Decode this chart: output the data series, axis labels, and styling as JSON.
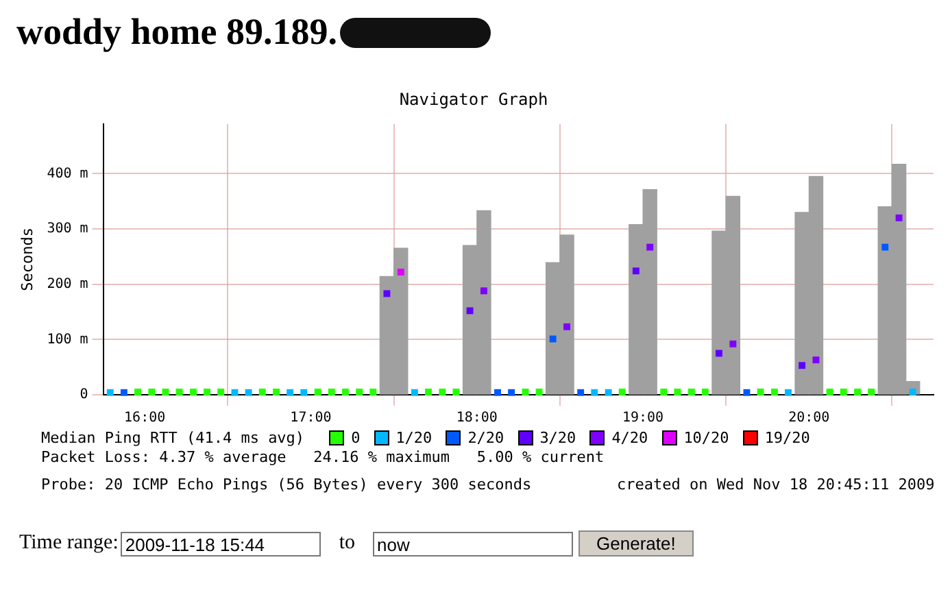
{
  "chart_data": {
    "type": "bar",
    "title": "woddy home 89.189.",
    "subtitle": "Navigator Graph",
    "ylabel": "Seconds",
    "legend_title": "Median Ping RTT (41.4 ms avg)",
    "legend": "bottom",
    "grid": true,
    "marker": "square",
    "xlim": [
      15.75,
      20.75
    ],
    "xticks": [
      {
        "value": 16,
        "label": "16:00"
      },
      {
        "value": 17,
        "label": "17:00"
      },
      {
        "value": 18,
        "label": "18:00"
      },
      {
        "value": 19,
        "label": "19:00"
      },
      {
        "value": 20,
        "label": "20:00"
      }
    ],
    "ylim": [
      0,
      490
    ],
    "yticks": [
      0,
      {
        "value": 100,
        "label": "100 m"
      },
      {
        "value": 200,
        "label": "200 m"
      },
      {
        "value": 300,
        "label": "300 m"
      },
      {
        "value": 400,
        "label": "400 m"
      }
    ],
    "series": [
      {
        "color": "#a0a0a0",
        "x": [
          17.458,
          17.542,
          17.958,
          18.042,
          18.458,
          18.542,
          18.958,
          19.042,
          19.458,
          19.542,
          19.958,
          20.042,
          20.458,
          20.542,
          20.625
        ],
        "values": [
          214,
          265,
          270,
          333,
          239,
          289,
          308,
          371,
          296,
          359,
          330,
          395,
          340,
          417,
          24
        ]
      },
      {
        "type": "scatter",
        "name": "0",
        "color": "#26ff00",
        "x": [
          15.958,
          16.042,
          16.125,
          16.208,
          16.292,
          16.375,
          16.458,
          16.708,
          16.792,
          17.042,
          17.125,
          17.208,
          17.292,
          17.375,
          17.708,
          17.792,
          17.875,
          18.292,
          18.375,
          18.875,
          19.125,
          19.208,
          19.292,
          19.375,
          19.708,
          19.792,
          20.125,
          20.208,
          20.292,
          20.375
        ],
        "values": [
          5,
          5,
          5,
          5,
          5,
          5,
          5,
          5,
          5,
          5,
          5,
          5,
          5,
          5,
          5,
          5,
          5,
          5,
          5,
          5,
          5,
          5,
          5,
          5,
          5,
          5,
          5,
          5,
          5,
          5
        ]
      },
      {
        "type": "scatter",
        "name": "1/20",
        "color": "#00b8ff",
        "x": [
          15.792,
          16.542,
          16.625,
          16.875,
          16.958,
          17.625,
          18.708,
          18.792,
          19.875,
          20.625
        ],
        "values": [
          4,
          4,
          4,
          4,
          4,
          4,
          4,
          4,
          4,
          5
        ]
      },
      {
        "type": "scatter",
        "name": "2/20",
        "color": "#0059ff",
        "x": [
          15.875,
          18.125,
          18.208,
          18.458,
          18.625,
          19.625,
          20.458
        ],
        "values": [
          4,
          4,
          4,
          101,
          4,
          4,
          267
        ]
      },
      {
        "type": "scatter",
        "name": "3/20",
        "color": "#5e00ff",
        "x": [
          17.458,
          17.958,
          18.958,
          19.458,
          19.958
        ],
        "values": [
          183,
          152,
          224,
          75,
          53
        ]
      },
      {
        "type": "scatter",
        "name": "4/20",
        "color": "#7e00ff",
        "x": [
          18.042,
          18.542,
          19.042,
          19.542,
          20.042,
          20.542
        ],
        "values": [
          188,
          123,
          267,
          92,
          63,
          320
        ]
      },
      {
        "type": "scatter",
        "name": "10/20",
        "color": "#dd00ff",
        "x": [
          17.542
        ],
        "values": [
          222
        ]
      },
      {
        "name": "19/20",
        "color": "#ff0000"
      }
    ],
    "annotations": [
      "Packet Loss: 4.37 % average   24.16 % maximum   5.00 % current",
      "Probe: 20 ICMP Echo Pings (56 Bytes) every 300 seconds",
      "created on Wed Nov 18 20:45:11 2009",
      "Time range:",
      "2009-11-18 15:44",
      "to",
      "now",
      "Generate!"
    ]
  }
}
